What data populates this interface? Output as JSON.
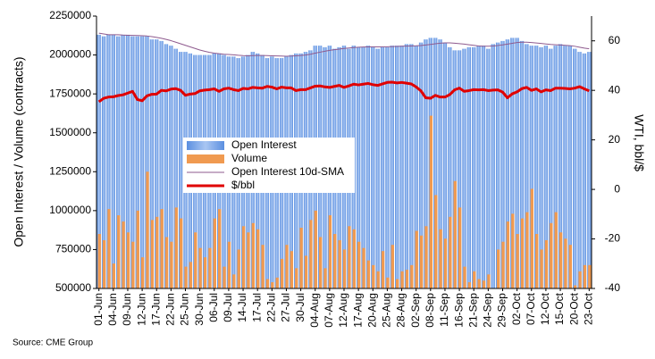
{
  "chart_data": {
    "type": "combo",
    "y_label": "Open Interest / Volume (contracts)",
    "y2_label": "WTI, bbl/$",
    "source": "Source: CME Group",
    "legend": "center",
    "categories": [
      "01-Jun",
      null,
      null,
      "04-Jun",
      null,
      null,
      "09-Jun",
      null,
      null,
      "12-Jun",
      null,
      null,
      "17-Jun",
      null,
      null,
      "22-Jun",
      null,
      null,
      "25-Jun",
      null,
      null,
      "30-Jun",
      null,
      null,
      "06-Jul",
      null,
      null,
      "09-Jul",
      null,
      null,
      "14-Jul",
      null,
      null,
      "17-Jul",
      null,
      null,
      "22-Jul",
      null,
      null,
      "27-Jul",
      null,
      null,
      "30-Jul",
      null,
      null,
      "04-Aug",
      null,
      null,
      "07-Aug",
      null,
      null,
      "12-Aug",
      null,
      null,
      "17-Aug",
      null,
      null,
      "20-Aug",
      null,
      null,
      "25-Aug",
      null,
      null,
      "28-Aug",
      null,
      null,
      "02-Sep",
      null,
      null,
      "08-Sep",
      null,
      null,
      "11-Sep",
      null,
      null,
      "16-Sep",
      null,
      null,
      "21-Sep",
      null,
      null,
      "24-Sep",
      null,
      null,
      "29-Sep",
      null,
      null,
      "02-Oct",
      null,
      null,
      "07-Oct",
      null,
      null,
      "12-Oct",
      null,
      null,
      "15-Oct",
      null,
      null,
      "20-Oct",
      null,
      null,
      "23-Oct"
    ],
    "ylim": [
      500000,
      2250000
    ],
    "yticks": [
      500000,
      750000,
      1000000,
      1250000,
      1500000,
      1750000,
      2000000,
      2250000
    ],
    "y2lim": [
      -40,
      70
    ],
    "y2ticks": [
      -40,
      -20,
      0,
      20,
      40,
      60
    ],
    "series": [
      {
        "name": "Open Interest",
        "kind": "bar",
        "color": "#5b8fe0",
        "values": [
          2130000,
          2120000,
          2130000,
          2130000,
          2120000,
          2130000,
          2130000,
          2120000,
          2120000,
          2120000,
          2120000,
          2100000,
          2100000,
          2090000,
          2070000,
          2060000,
          2040000,
          2020000,
          2020000,
          2010000,
          2000000,
          2000000,
          2000000,
          2000000,
          2010000,
          2010000,
          2000000,
          1990000,
          1990000,
          1980000,
          1990000,
          2000000,
          2020000,
          2010000,
          2000000,
          1980000,
          1990000,
          1980000,
          1980000,
          1990000,
          2000000,
          2010000,
          2010000,
          2020000,
          2030000,
          2060000,
          2060000,
          2050000,
          2060000,
          2040000,
          2050000,
          2060000,
          2040000,
          2060000,
          2050000,
          2050000,
          2060000,
          2050000,
          2040000,
          2050000,
          2050000,
          2060000,
          2060000,
          2060000,
          2070000,
          2070000,
          2060000,
          2080000,
          2100000,
          2110000,
          2110000,
          2100000,
          2080000,
          2050000,
          2030000,
          2030000,
          2040000,
          2050000,
          2050000,
          2060000,
          2060000,
          2040000,
          2070000,
          2080000,
          2090000,
          2100000,
          2110000,
          2110000,
          2090000,
          2070000,
          2060000,
          2060000,
          2050000,
          2060000,
          2040000,
          2060000,
          2070000,
          2060000,
          2060000,
          2040000,
          2020000,
          2010000,
          2020000
        ]
      },
      {
        "name": "Volume",
        "kind": "bar",
        "color": "#f09a50",
        "values": [
          850000,
          810000,
          1010000,
          660000,
          970000,
          930000,
          860000,
          800000,
          1000000,
          700000,
          1250000,
          940000,
          960000,
          1010000,
          830000,
          800000,
          1020000,
          950000,
          640000,
          670000,
          860000,
          760000,
          700000,
          760000,
          950000,
          1010000,
          640000,
          800000,
          590000,
          750000,
          900000,
          860000,
          920000,
          880000,
          780000,
          560000,
          540000,
          570000,
          690000,
          780000,
          740000,
          630000,
          890000,
          710000,
          940000,
          1000000,
          830000,
          630000,
          970000,
          850000,
          810000,
          750000,
          900000,
          880000,
          800000,
          760000,
          680000,
          650000,
          610000,
          740000,
          570000,
          780000,
          560000,
          610000,
          620000,
          650000,
          870000,
          840000,
          900000,
          1610000,
          1100000,
          880000,
          820000,
          960000,
          1190000,
          1020000,
          640000,
          540000,
          610000,
          560000,
          550000,
          590000,
          500000,
          750000,
          800000,
          930000,
          980000,
          850000,
          950000,
          990000,
          1140000,
          850000,
          750000,
          810000,
          920000,
          990000,
          860000,
          820000,
          780000,
          520000,
          610000,
          650000,
          650000
        ]
      },
      {
        "name": "Open Interest 10d-SMA",
        "kind": "line",
        "color": "#8e5a8e",
        "width": 1,
        "values": [
          2140000,
          2135000,
          2130000,
          2130000,
          2130000,
          2128000,
          2127000,
          2126000,
          2125000,
          2124000,
          2122000,
          2118000,
          2113000,
          2107000,
          2100000,
          2092000,
          2082000,
          2072000,
          2062000,
          2052000,
          2042000,
          2032000,
          2024000,
          2017000,
          2012000,
          2008000,
          2005000,
          2003000,
          2001000,
          1998000,
          1996000,
          1995000,
          1996000,
          1997000,
          1997000,
          1996000,
          1995000,
          1994000,
          1993000,
          1992000,
          1993000,
          1995000,
          1997000,
          2000000,
          2005000,
          2012000,
          2018000,
          2024000,
          2030000,
          2034000,
          2038000,
          2042000,
          2045000,
          2048000,
          2050000,
          2051000,
          2052000,
          2052000,
          2052000,
          2053000,
          2053000,
          2054000,
          2055000,
          2056000,
          2057000,
          2058000,
          2059000,
          2061000,
          2064000,
          2068000,
          2072000,
          2076000,
          2078000,
          2078000,
          2076000,
          2073000,
          2070000,
          2066000,
          2062000,
          2058000,
          2056000,
          2056000,
          2058000,
          2061000,
          2065000,
          2070000,
          2075000,
          2080000,
          2082000,
          2082000,
          2080000,
          2077000,
          2074000,
          2071000,
          2068000,
          2066000,
          2064000,
          2062000,
          2060000,
          2056000,
          2050000,
          2044000,
          2040000
        ]
      },
      {
        "name": "$/bbl",
        "kind": "line",
        "axis": "y2",
        "color": "#e00000",
        "width": 3,
        "values": [
          35.4,
          36.8,
          37.3,
          37.4,
          37.9,
          38.2,
          38.9,
          39.6,
          36.3,
          35.8,
          37.8,
          38.4,
          38.5,
          40.0,
          39.8,
          40.5,
          40.7,
          40.0,
          38.0,
          38.5,
          38.7,
          39.8,
          40.1,
          40.3,
          40.6,
          39.6,
          40.6,
          40.9,
          40.3,
          39.9,
          40.8,
          40.6,
          41.2,
          41.0,
          40.9,
          41.6,
          41.3,
          40.6,
          41.3,
          41.0,
          41.0,
          39.9,
          40.3,
          40.3,
          41.0,
          41.7,
          41.8,
          41.4,
          41.2,
          41.6,
          42.0,
          41.2,
          41.8,
          42.5,
          42.2,
          42.5,
          42.8,
          42.3,
          42.0,
          42.6,
          43.2,
          43.3,
          43.0,
          43.2,
          42.9,
          42.6,
          41.4,
          39.8,
          37.0,
          36.8,
          38.0,
          37.3,
          37.3,
          38.3,
          40.2,
          40.9,
          39.6,
          39.9,
          40.3,
          40.2,
          40.3,
          39.9,
          40.1,
          40.2,
          39.3,
          37.0,
          38.6,
          39.4,
          40.7,
          41.2,
          40.0,
          40.6,
          39.4,
          40.2,
          39.9,
          40.9,
          40.9,
          40.8,
          40.6,
          40.9,
          41.5,
          40.6,
          39.8
        ]
      }
    ]
  }
}
